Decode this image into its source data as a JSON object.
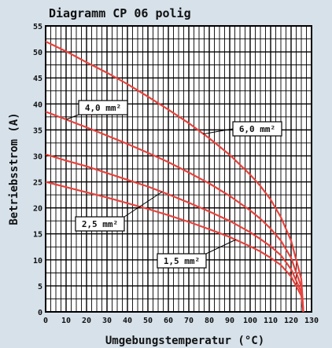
{
  "chart_data": {
    "type": "line",
    "title": "Diagramm CP 06 polig",
    "xlabel": "Umgebungstemperatur (°C)",
    "ylabel": "Betriebsstrom (A)",
    "xlim": [
      0,
      130
    ],
    "ylim": [
      0,
      55
    ],
    "x_ticks": [
      "0",
      "10",
      "20",
      "30",
      "40",
      "50",
      "60",
      "70",
      "80",
      "90",
      "100",
      "110",
      "120",
      "130"
    ],
    "y_ticks": [
      "0",
      "5",
      "10",
      "15",
      "20",
      "25",
      "30",
      "35",
      "40",
      "45",
      "50",
      "55"
    ],
    "grid": true,
    "colors": {
      "background": "#d6e1ea",
      "plot": "#ffffff",
      "grid": "#000000",
      "line": "#e8423c"
    },
    "series": [
      {
        "name": "6,0 mm²",
        "x": [
          0,
          10,
          20,
          30,
          40,
          50,
          60,
          70,
          80,
          90,
          100,
          105,
          110,
          115,
          120,
          125,
          126
        ],
        "y": [
          52.0,
          50.1,
          48.0,
          46.0,
          43.8,
          41.4,
          38.9,
          36.3,
          33.4,
          30.2,
          26.4,
          24.2,
          21.6,
          18.2,
          13.7,
          6.3,
          0
        ]
      },
      {
        "name": "4,0 mm²",
        "x": [
          0,
          10,
          20,
          30,
          40,
          50,
          60,
          70,
          80,
          90,
          100,
          105,
          110,
          115,
          120,
          125,
          126
        ],
        "y": [
          38.5,
          37.0,
          35.5,
          33.9,
          32.3,
          30.6,
          28.8,
          26.8,
          24.7,
          22.3,
          19.5,
          17.9,
          16.0,
          13.7,
          10.4,
          4.8,
          0
        ]
      },
      {
        "name": "2,5 mm²",
        "x": [
          0,
          10,
          20,
          30,
          40,
          50,
          60,
          70,
          80,
          90,
          100,
          105,
          110,
          115,
          120,
          125,
          126
        ],
        "y": [
          30.3,
          29.1,
          28.0,
          26.7,
          25.4,
          24.1,
          22.6,
          21.0,
          19.3,
          17.5,
          15.3,
          14.0,
          12.6,
          10.9,
          8.2,
          3.8,
          0
        ]
      },
      {
        "name": "1,5 mm²",
        "x": [
          0,
          10,
          20,
          30,
          40,
          50,
          60,
          70,
          80,
          90,
          100,
          105,
          110,
          115,
          120,
          125,
          126
        ],
        "y": [
          25.0,
          24.0,
          23.0,
          22.0,
          20.9,
          19.8,
          18.6,
          17.3,
          15.9,
          14.4,
          12.6,
          11.6,
          10.4,
          9.0,
          6.8,
          3.1,
          0
        ]
      }
    ],
    "callouts": [
      {
        "label": "4,0 mm²",
        "series": "4,0 mm²",
        "anchor_x": 10,
        "anchor_y": 37.0
      },
      {
        "label": "6,0 mm²",
        "series": "6,0 mm²",
        "anchor_x": 77,
        "anchor_y": 34.2
      },
      {
        "label": "2,5 mm²",
        "series": "2,5 mm²",
        "anchor_x": 57,
        "anchor_y": 23.1
      },
      {
        "label": "1,5 mm²",
        "series": "1,5 mm²",
        "anchor_x": 93,
        "anchor_y": 13.9
      }
    ]
  }
}
